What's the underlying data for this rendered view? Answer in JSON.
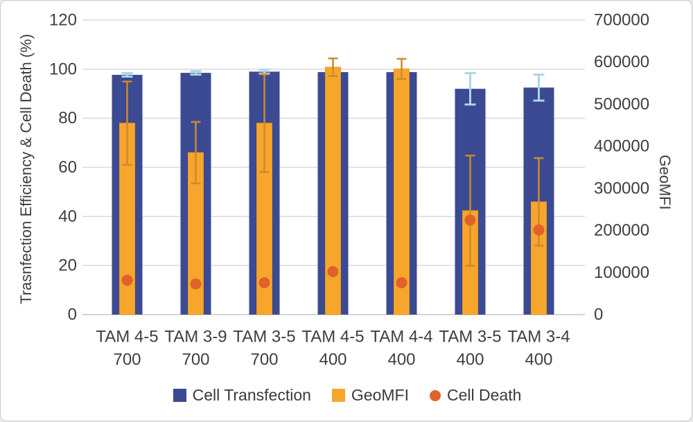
{
  "chart_data": {
    "type": "bar",
    "subtype": "dual-axis column + scatter overlay with error bars",
    "categories": [
      {
        "line1": "TAM 4-5",
        "line2": "700"
      },
      {
        "line1": "TAM 3-9",
        "line2": "700"
      },
      {
        "line1": "TAM 3-5",
        "line2": "700"
      },
      {
        "line1": "TAM 4-5",
        "line2": "400"
      },
      {
        "line1": "TAM 4-4",
        "line2": "400"
      },
      {
        "line1": "TAM 3-5",
        "line2": "400"
      },
      {
        "line1": "TAM 3-4",
        "line2": "400"
      }
    ],
    "left_axis": {
      "label": "Trasnfection Efficiency & Cell Death (%)",
      "min": 0,
      "max": 120,
      "step": 20,
      "ticks": [
        0,
        20,
        40,
        60,
        80,
        100,
        120
      ]
    },
    "right_axis": {
      "label": "GeoMFI",
      "min": 0,
      "max": 700000,
      "step": 100000,
      "ticks": [
        0,
        100000,
        200000,
        300000,
        400000,
        500000,
        600000,
        700000
      ]
    },
    "series": [
      {
        "name": "Cell Transfection",
        "type": "bar",
        "axis": "left",
        "color": "#3B4A92",
        "error_color": "#ABD7E6",
        "values": [
          97.7,
          98.5,
          99,
          98.8,
          98.8,
          92,
          92.5
        ],
        "errors": [
          0.7,
          0.7,
          0.8,
          0.5,
          0.5,
          6.4,
          5.3
        ]
      },
      {
        "name": "GeoMFI",
        "type": "bar",
        "axis": "right",
        "color": "#F7A62C",
        "error_color": "#D0882E",
        "values": [
          455000,
          385000,
          455000,
          588000,
          584000,
          247000,
          268000
        ],
        "errors": [
          99000,
          73000,
          116000,
          21000,
          24000,
          131000,
          104000
        ]
      },
      {
        "name": "Cell Death",
        "type": "point",
        "axis": "left",
        "color": "#E0622A",
        "values": [
          14,
          12.5,
          13,
          17.5,
          13,
          38.5,
          34.5
        ]
      }
    ],
    "legend": [
      {
        "label": "Cell Transfection",
        "swatch": "square",
        "color": "#3B4A92"
      },
      {
        "label": "GeoMFI",
        "swatch": "square",
        "color": "#F7A62C"
      },
      {
        "label": "Cell Death",
        "swatch": "circle",
        "color": "#E0622A"
      }
    ],
    "grid": true,
    "grid_color": "#D9D9D9",
    "baseline_color": "#C6C6C6",
    "text_color": "#3e3e3e",
    "legend_position": "bottom"
  }
}
